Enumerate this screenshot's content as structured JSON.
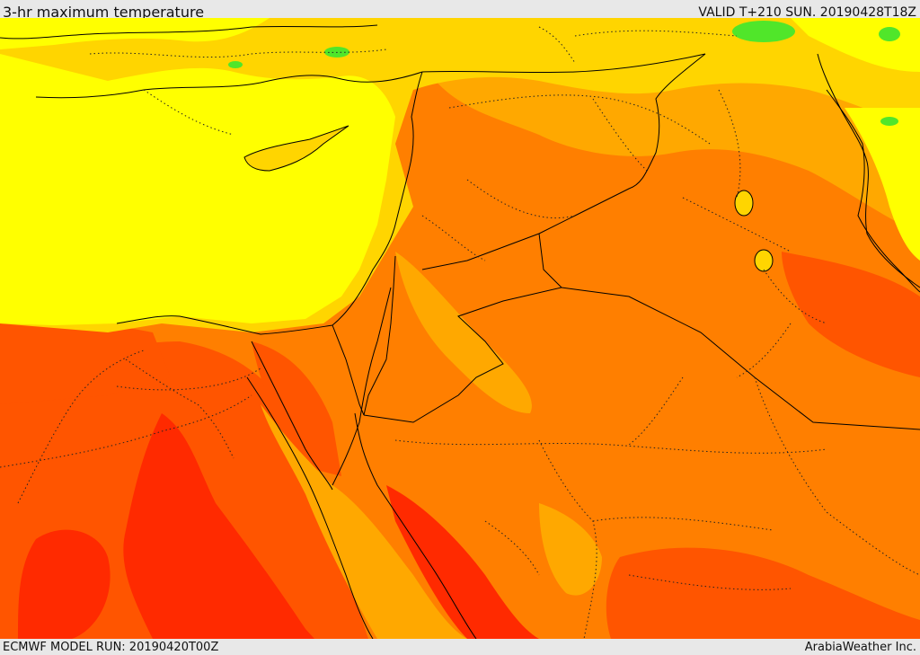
{
  "header": {
    "title": "3-hr maximum temperature",
    "valid": "VALID T+210 SUN. 20190428T18Z"
  },
  "footer": {
    "model_run": "ECMWF MODEL RUN: 20190420T00Z",
    "credit": "ArabiaWeather Inc."
  },
  "palette": {
    "cool_green": "#50e62a",
    "yellow": "#ffff00",
    "light_amber": "#ffd500",
    "amber": "#ffa800",
    "orange": "#ff7f00",
    "red_orange": "#ff5500",
    "red": "#ff2a00",
    "border_color": "#000000"
  }
}
